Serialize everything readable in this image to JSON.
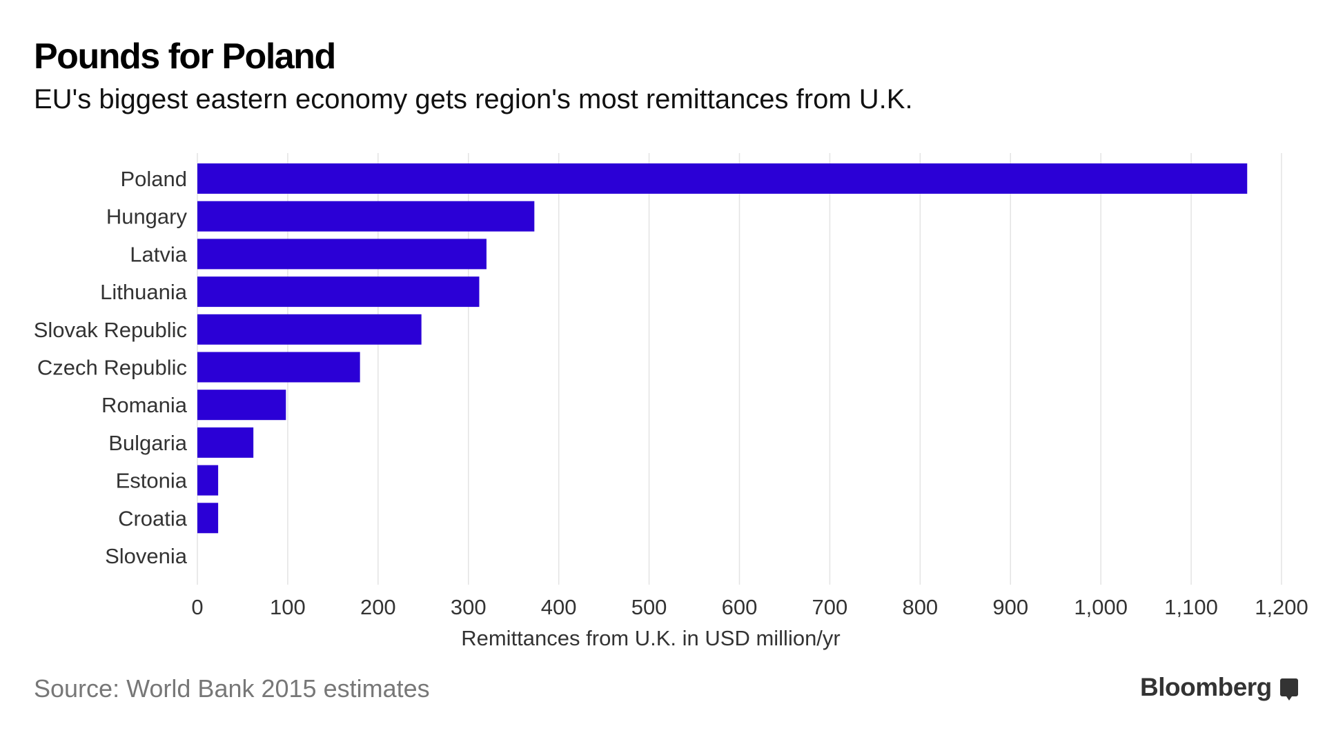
{
  "title": "Pounds for Poland",
  "subtitle": "EU's biggest eastern economy gets region's most remittances from U.K.",
  "source": "Source: World Bank 2015 estimates",
  "logo": "Bloomberg",
  "chart_data": {
    "type": "bar",
    "orientation": "horizontal",
    "categories": [
      "Poland",
      "Hungary",
      "Latvia",
      "Lithuania",
      "Slovak Republic",
      "Czech Republic",
      "Romania",
      "Bulgaria",
      "Estonia",
      "Croatia",
      "Slovenia"
    ],
    "values": [
      1162,
      373,
      320,
      312,
      248,
      180,
      98,
      62,
      23,
      23,
      0
    ],
    "xlabel": "Remittances from U.K. in USD million/yr",
    "ylabel": "",
    "xlim": [
      0,
      1200
    ],
    "xticks": [
      0,
      100,
      200,
      300,
      400,
      500,
      600,
      700,
      800,
      900,
      1000,
      1100,
      1200
    ],
    "xtick_labels": [
      "0",
      "100",
      "200",
      "300",
      "400",
      "500",
      "600",
      "700",
      "800",
      "900",
      "1,000",
      "1,100",
      "1,200"
    ],
    "grid": true,
    "bar_color": "#2b00d6"
  }
}
